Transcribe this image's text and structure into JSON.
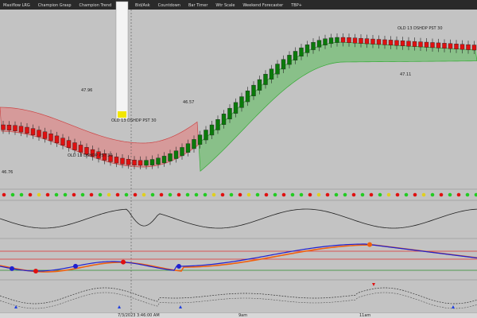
{
  "toolbar": {
    "items": [
      "Maxiflow LRG",
      "Champion Grasp",
      "Champion Trend",
      "Bid/Ask",
      "Countdown",
      "Bar Timer",
      "Wtr Scale",
      "Weekend Forecaster",
      "TBP+"
    ]
  },
  "price_labels": [
    "47.96",
    "46.76",
    "46.57",
    "47.11"
  ],
  "annotations": [
    "OLD 13 DSHDP PST 30",
    "OLD 13 DSHDP PST 30",
    "OLD 13 DSHDP PST 30"
  ],
  "time_labels": [
    "7/3/2023 3:46:00 AM",
    "9am",
    "11am"
  ]
}
